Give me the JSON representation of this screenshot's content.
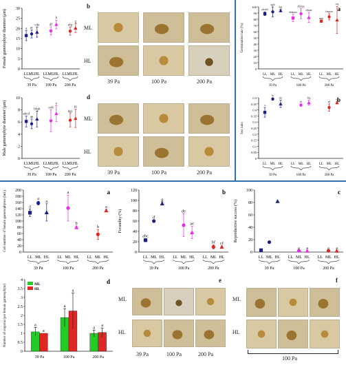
{
  "panel_letters": {
    "a": "a",
    "b": "b",
    "c": "c",
    "d": "d",
    "e": "e",
    "f": "f"
  },
  "light_labels": [
    "LL",
    "ML",
    "HL"
  ],
  "flow_labels": [
    "39 Pa",
    "100 Pa",
    "200 Pa"
  ],
  "photo_rows": {
    "ml": "ML",
    "hl": "HL"
  },
  "photo_f_caption": "100 Pa",
  "colors": {
    "39": "#1a1f8c",
    "100": "#e62be6",
    "200": "#e02525",
    "legend_ml": "#22cc22",
    "legend_hl": "#e02525",
    "divider": "#2f6fae"
  },
  "chart_data": [
    {
      "id": "female-diameter",
      "type": "scatter",
      "ylabel": "Female gametophyte diameter (μm)",
      "ylim": [
        0,
        30
      ],
      "yticks": [
        0,
        5,
        10,
        15,
        20,
        25,
        30
      ],
      "groups": [
        "39 Pa",
        "100 Pa",
        "200 Pa"
      ],
      "categories": [
        "LL",
        "ML",
        "HL"
      ],
      "points": [
        {
          "group": 0,
          "cat": 0,
          "y": 16.5,
          "err": 2.5,
          "label": "a"
        },
        {
          "group": 0,
          "cat": 1,
          "y": 17.3,
          "err": 2.0,
          "label": "ac"
        },
        {
          "group": 0,
          "cat": 2,
          "y": 18.2,
          "err": 2.5,
          "label": "cde"
        },
        {
          "group": 1,
          "cat": 1,
          "y": 18.8,
          "err": 2.0,
          "label": "df"
        },
        {
          "group": 1,
          "cat": 2,
          "y": 22.0,
          "err": 2.2,
          "label": "b"
        },
        {
          "group": 2,
          "cat": 1,
          "y": 18.7,
          "err": 2.0,
          "label": "efg"
        },
        {
          "group": 2,
          "cat": 2,
          "y": 20.2,
          "err": 2.2,
          "label": "g"
        }
      ]
    },
    {
      "id": "male-diameter",
      "type": "scatter",
      "ylabel": "Male gametophyte diameter (μm)",
      "ylim": [
        0,
        10
      ],
      "yticks": [
        0,
        2,
        4,
        6,
        8,
        10
      ],
      "groups": [
        "39 Pa",
        "100 Pa",
        "200 Pa"
      ],
      "categories": [
        "LL",
        "ML",
        "HL"
      ],
      "points": [
        {
          "group": 0,
          "cat": 0,
          "y": 6.1,
          "err": 0.9,
          "label": "abcd"
        },
        {
          "group": 0,
          "cat": 1,
          "y": 5.7,
          "err": 0.8,
          "label": "ae"
        },
        {
          "group": 0,
          "cat": 2,
          "y": 6.5,
          "err": 1.3,
          "label": "bfgh"
        },
        {
          "group": 1,
          "cat": 1,
          "y": 6.2,
          "err": 1.8,
          "label": "cefi"
        },
        {
          "group": 1,
          "cat": 2,
          "y": 7.4,
          "err": 1.3,
          "label": "e"
        },
        {
          "group": 2,
          "cat": 1,
          "y": 6.3,
          "err": 1.1,
          "label": "dgi"
        },
        {
          "group": 2,
          "cat": 2,
          "y": 6.6,
          "err": 1.5,
          "label": "hi"
        }
      ]
    },
    {
      "id": "germination-rate",
      "type": "scatter",
      "panel_letter": "a",
      "ylabel": "Germination rate (%)",
      "ylim": [
        0,
        100
      ],
      "yticks": [
        0,
        10,
        20,
        30,
        40,
        50,
        60,
        70,
        80,
        90,
        100
      ],
      "groups": [
        "39 Pa",
        "100 Pa",
        "200 Pa"
      ],
      "categories": [
        "LL",
        "ML",
        "HL"
      ],
      "points": [
        {
          "group": 0,
          "cat": 0,
          "y": 89,
          "err": 3,
          "label": "abcdef"
        },
        {
          "group": 0,
          "cat": 1,
          "y": 92,
          "err": 8,
          "label": "aghi"
        },
        {
          "group": 0,
          "cat": 2,
          "y": 94,
          "err": 2,
          "label": "bgj"
        },
        {
          "group": 1,
          "cat": 0,
          "y": 82,
          "err": 6,
          "label": "dehmno"
        },
        {
          "group": 1,
          "cat": 1,
          "y": 89,
          "err": 8,
          "label": "dhjkpq"
        },
        {
          "group": 1,
          "cat": 2,
          "y": 83,
          "err": 8,
          "label": "ejkmn"
        },
        {
          "group": 2,
          "cat": 0,
          "y": 77,
          "err": 1,
          "label": "mno"
        },
        {
          "group": 2,
          "cat": 1,
          "y": 84,
          "err": 5,
          "label": "fimpon"
        },
        {
          "group": 2,
          "cat": 2,
          "y": 79,
          "err": 22,
          "label": "oiq"
        }
      ]
    },
    {
      "id": "sex-ratio",
      "type": "scatter",
      "panel_letter": "b",
      "ylabel": "Sex ratio",
      "ylim": [
        0,
        0.5
      ],
      "yticks": [
        0,
        0.05,
        0.1,
        0.15,
        0.2,
        0.25,
        0.3,
        0.35,
        0.4,
        0.45,
        0.5
      ],
      "groups": [
        "39 Pa",
        "100 Pa",
        "200 Pa"
      ],
      "categories": [
        "LL",
        "ML",
        "HL"
      ],
      "points": [
        {
          "group": 0,
          "cat": 0,
          "y": 0.38,
          "err": 0.04,
          "label": "a"
        },
        {
          "group": 0,
          "cat": 1,
          "y": 0.49,
          "err": 0.01,
          "label": "bc"
        },
        {
          "group": 0,
          "cat": 2,
          "y": 0.45,
          "err": 0.03,
          "label": "def"
        },
        {
          "group": 1,
          "cat": 1,
          "y": 0.44,
          "err": 0.01,
          "label": "dc"
        },
        {
          "group": 1,
          "cat": 2,
          "y": 0.46,
          "err": 0.02,
          "label": "bfg"
        },
        {
          "group": 2,
          "cat": 1,
          "y": 0.42,
          "err": 0.03,
          "label": "ad"
        },
        {
          "group": 2,
          "cat": 2,
          "y": 0.46,
          "err": 0.01,
          "label": "eg"
        }
      ]
    },
    {
      "id": "cell-number",
      "type": "scatter",
      "panel_letter": "a",
      "ylabel": "Cell number of female gametophytes (ind.)",
      "ylim": [
        0,
        200
      ],
      "yticks": [
        0,
        20,
        40,
        60,
        80,
        100,
        120,
        140,
        160,
        180,
        200
      ],
      "groups": [
        "39 Pa",
        "100 Pa",
        "200 Pa"
      ],
      "categories": [
        "LL",
        "ML",
        "HL"
      ],
      "points": [
        {
          "group": 0,
          "cat": 0,
          "y": 127,
          "err": 12,
          "label": "a"
        },
        {
          "group": 0,
          "cat": 1,
          "y": 158,
          "err": 6,
          "label": "a"
        },
        {
          "group": 0,
          "cat": 2,
          "y": 128,
          "err": 28,
          "label": "a"
        },
        {
          "group": 1,
          "cat": 1,
          "y": 142,
          "err": 42,
          "label": "a"
        },
        {
          "group": 1,
          "cat": 2,
          "y": 80,
          "err": 4,
          "label": "b"
        },
        {
          "group": 2,
          "cat": 1,
          "y": 57,
          "err": 16,
          "label": "b"
        },
        {
          "group": 2,
          "cat": 2,
          "y": 134,
          "err": 4,
          "label": "a"
        }
      ]
    },
    {
      "id": "fecundity",
      "type": "scatter",
      "panel_letter": "b",
      "ylabel": "Fecundity (%)",
      "ylim": [
        0,
        120
      ],
      "yticks": [
        0,
        20,
        40,
        60,
        80,
        100,
        120
      ],
      "groups": [
        "39 Pa",
        "100 Pa",
        "200 Pa"
      ],
      "categories": [
        "LL",
        "ML",
        "HL"
      ],
      "points": [
        {
          "group": 0,
          "cat": 0,
          "y": 23,
          "err": 3,
          "label": "abc"
        },
        {
          "group": 0,
          "cat": 1,
          "y": 60,
          "err": 2,
          "label": "d"
        },
        {
          "group": 0,
          "cat": 2,
          "y": 94,
          "err": 3,
          "label": "g"
        },
        {
          "group": 1,
          "cat": 1,
          "y": 52,
          "err": 22,
          "label": "de"
        },
        {
          "group": 1,
          "cat": 2,
          "y": 38,
          "err": 12,
          "label": "ae"
        },
        {
          "group": 2,
          "cat": 1,
          "y": 10,
          "err": 4,
          "label": "bf"
        },
        {
          "group": 2,
          "cat": 2,
          "y": 10,
          "err": 2,
          "label": "cf"
        }
      ]
    },
    {
      "id": "reproductive-success",
      "type": "scatter",
      "panel_letter": "c",
      "ylabel": "Reproductive success (%)",
      "ylim": [
        0,
        100
      ],
      "yticks": [
        0,
        20,
        40,
        60,
        80,
        100
      ],
      "groups": [
        "39 Pa",
        "100 Pa",
        "200 Pa"
      ],
      "categories": [
        "LL",
        "ML",
        "HL"
      ],
      "points": [
        {
          "group": 0,
          "cat": 0,
          "y": 3,
          "err": 0,
          "label": ""
        },
        {
          "group": 0,
          "cat": 1,
          "y": 16,
          "err": 0,
          "label": ""
        },
        {
          "group": 0,
          "cat": 2,
          "y": 82,
          "err": 0,
          "label": ""
        },
        {
          "group": 1,
          "cat": 1,
          "y": 2,
          "err": 0,
          "label": "a"
        },
        {
          "group": 1,
          "cat": 2,
          "y": 2,
          "err": 0,
          "label": "a"
        },
        {
          "group": 2,
          "cat": 1,
          "y": 2,
          "err": 0,
          "label": "a"
        },
        {
          "group": 2,
          "cat": 2,
          "y": 2,
          "err": 0,
          "label": "a"
        }
      ]
    },
    {
      "id": "oogonia",
      "type": "bar",
      "panel_letter": "d",
      "ylabel": "Number of oogonia (per female gametophyte)",
      "ylim": [
        0,
        4
      ],
      "yticks": [
        0,
        0.5,
        1,
        1.5,
        2,
        2.5,
        3,
        3.5,
        4
      ],
      "categories": [
        "39 Pa",
        "100 Pa",
        "200 Pa"
      ],
      "legend": [
        "ML",
        "HL"
      ],
      "legend_position": "top-left",
      "series": [
        {
          "name": "ML",
          "values": [
            1.08,
            1.88,
            1.0
          ],
          "errors": [
            0.25,
            0.5,
            0.18
          ],
          "labels": [
            "a",
            "a",
            "a"
          ]
        },
        {
          "name": "HL",
          "values": [
            1.0,
            2.25,
            1.05
          ],
          "errors": [
            0.0,
            1.0,
            0.25
          ],
          "labels": [
            "a",
            "a",
            "a"
          ]
        }
      ]
    }
  ]
}
